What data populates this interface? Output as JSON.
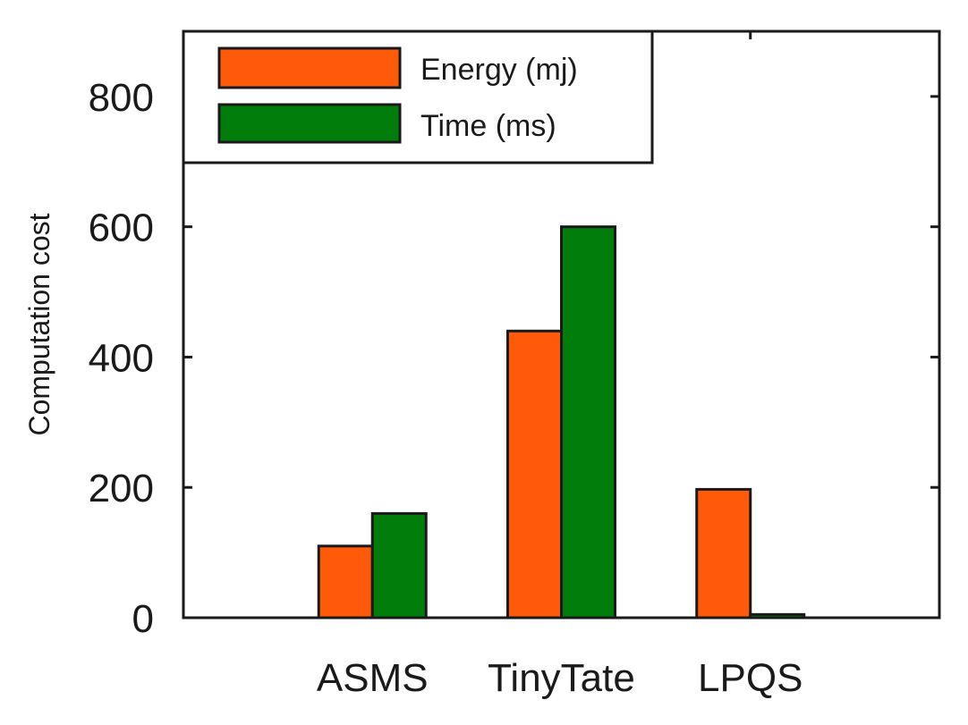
{
  "chart_data": {
    "type": "bar",
    "title": "",
    "xlabel": "",
    "ylabel": "Computation cost",
    "categories": [
      "ASMS",
      "TinyTate",
      "LPQS"
    ],
    "series": [
      {
        "name": "Energy (mj)",
        "color": "#ff5a0a",
        "values": [
          110,
          440,
          197
        ]
      },
      {
        "name": "Time (ms)",
        "color": "#007d0a",
        "values": [
          160,
          600,
          5
        ]
      }
    ],
    "ylim": [
      0,
      900
    ],
    "yticks": [
      0,
      200,
      400,
      600,
      800
    ],
    "grid": false,
    "legend": "top-left"
  }
}
